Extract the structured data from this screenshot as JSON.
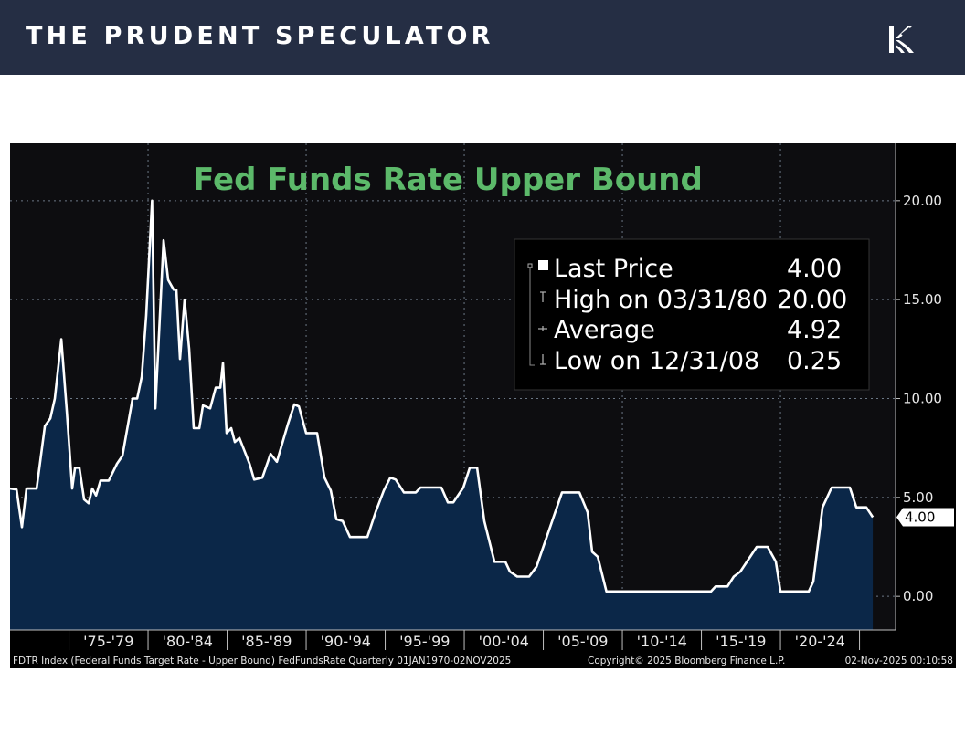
{
  "header": {
    "brand": "THE PRUDENT SPECULATOR",
    "logo_icon": "kovitz-k-logo"
  },
  "chart_data": {
    "type": "area",
    "title": "Fed Funds Rate Upper Bound",
    "title_color": "#5cb96a",
    "line_color": "#ffffff",
    "fill_color": "#0b2748",
    "background_color": "#0d0d10",
    "grid": true,
    "ylim": [
      -1.7,
      22.9
    ],
    "xlim": [
      1971.27,
      2027.28
    ],
    "y_axis_side": "right",
    "yticks": [
      0,
      5,
      10,
      15,
      20
    ],
    "ytick_labels": [
      "0.00",
      "5.00",
      "10.00",
      "15.00",
      "20.00"
    ],
    "xtick_labels": [
      "'75-'79",
      "'80-'84",
      "'85-'89",
      "'90-'94",
      "'95-'99",
      "'00-'04",
      "'05-'09",
      "'10-'14",
      "'15-'19",
      "'20-'24"
    ],
    "xtick_starts": [
      1975,
      1980,
      1985,
      1990,
      1995,
      2000,
      2005,
      2010,
      2015,
      2020
    ],
    "last_value_label": "4.00",
    "legend": {
      "placement": "top-right",
      "rows": [
        {
          "label": "Last Price",
          "value": "4.00"
        },
        {
          "label": "High on 03/31/80",
          "value": "20.00"
        },
        {
          "label": "Average",
          "value": "4.92"
        },
        {
          "label": "Low on 12/31/08",
          "value": "0.25"
        }
      ]
    },
    "x": [
      1971.27,
      1971.68,
      1972.02,
      1972.31,
      1972.95,
      1973.47,
      1973.82,
      1974.1,
      1974.51,
      1974.86,
      1975.2,
      1975.38,
      1975.66,
      1975.95,
      1976.24,
      1976.47,
      1976.71,
      1976.99,
      1977.51,
      1978.03,
      1978.38,
      1979.02,
      1979.31,
      1979.6,
      1979.88,
      1980.25,
      1980.46,
      1980.75,
      1980.98,
      1981.27,
      1981.62,
      1981.79,
      1982.02,
      1982.31,
      1982.6,
      1982.89,
      1983.24,
      1983.47,
      1983.93,
      1984.28,
      1984.57,
      1984.74,
      1984.97,
      1985.26,
      1985.49,
      1985.78,
      1986.42,
      1986.71,
      1987.23,
      1987.75,
      1988.15,
      1988.84,
      1989.25,
      1989.54,
      1990.0,
      1990.69,
      1991.16,
      1991.56,
      1991.91,
      1992.31,
      1992.77,
      1993.87,
      1994.39,
      1994.91,
      1995.32,
      1995.66,
      1996.18,
      1996.94,
      1997.23,
      1998.55,
      1998.96,
      1999.31,
      1999.94,
      2000.35,
      2000.81,
      2001.27,
      2001.91,
      2002.6,
      2002.89,
      2003.35,
      2004.1,
      2004.57,
      2006.18,
      2007.28,
      2007.8,
      2008.09,
      2008.44,
      2008.99,
      2015.61,
      2015.9,
      2016.65,
      2017.05,
      2017.46,
      2018.5,
      2019.19,
      2019.71,
      2020.0,
      2021.79,
      2022.08,
      2022.66,
      2023.24,
      2024.39,
      2024.8,
      2025.43,
      2025.84
    ],
    "values": [
      5.45,
      5.4,
      3.5,
      5.45,
      5.45,
      8.6,
      9.0,
      10.0,
      13.0,
      9.35,
      5.45,
      6.5,
      6.5,
      4.9,
      4.7,
      5.45,
      5.1,
      5.85,
      5.85,
      6.7,
      7.1,
      10.0,
      10.0,
      11.1,
      14.2,
      20.0,
      9.5,
      14.2,
      18.0,
      16.0,
      15.5,
      15.5,
      12.0,
      15.0,
      12.5,
      8.5,
      8.5,
      9.65,
      9.5,
      10.55,
      10.55,
      11.8,
      8.25,
      8.5,
      7.8,
      8.0,
      6.7,
      5.9,
      6.0,
      7.2,
      6.8,
      8.7,
      9.7,
      9.6,
      8.25,
      8.25,
      6.0,
      5.35,
      3.9,
      3.8,
      3.0,
      3.0,
      4.25,
      5.35,
      6.0,
      5.9,
      5.25,
      5.25,
      5.5,
      5.5,
      4.75,
      4.75,
      5.5,
      6.5,
      6.5,
      3.8,
      1.75,
      1.75,
      1.25,
      1.0,
      1.0,
      1.5,
      5.25,
      5.25,
      4.25,
      2.25,
      2.0,
      0.25,
      0.25,
      0.5,
      0.5,
      1.0,
      1.25,
      2.5,
      2.5,
      1.75,
      0.25,
      0.25,
      0.75,
      4.5,
      5.5,
      5.5,
      4.5,
      4.5,
      4.0
    ]
  },
  "footer": {
    "source": "FDTR Index (Federal Funds Target Rate - Upper Bound) FedFundsRate Quarterly 01JAN1970-02NOV2025",
    "copyright": "Copyright© 2025 Bloomberg Finance L.P.",
    "timestamp": "02-Nov-2025 00:10:58"
  }
}
